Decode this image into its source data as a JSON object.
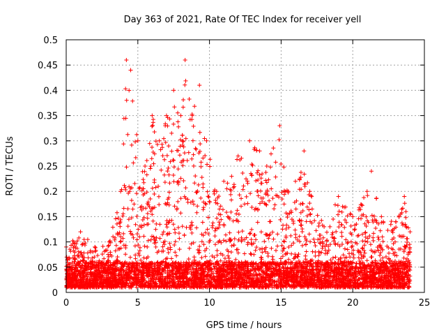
{
  "chart_data": {
    "type": "scatter",
    "title": "Day 363 of 2021, Rate Of TEC Index for receiver yell",
    "xlabel": "GPS time / hours",
    "ylabel": "ROTI / TECUs",
    "xlim": [
      0,
      25
    ],
    "ylim": [
      0,
      0.5
    ],
    "xticks": [
      "0",
      "5",
      "10",
      "15",
      "20",
      "25"
    ],
    "yticks": [
      "0",
      "0.05",
      "0.1",
      "0.15",
      "0.2",
      "0.25",
      "0.3",
      "0.35",
      "0.4",
      "0.45",
      "0.5"
    ],
    "grid": true,
    "marker": "plus",
    "color": "#ff0000",
    "x_range_of_data": [
      0,
      24
    ],
    "envelope": [
      {
        "x": 0.0,
        "y": 0.09
      },
      {
        "x": 1.0,
        "y": 0.12
      },
      {
        "x": 2.0,
        "y": 0.09
      },
      {
        "x": 3.0,
        "y": 0.1
      },
      {
        "x": 3.8,
        "y": 0.2
      },
      {
        "x": 4.2,
        "y": 0.46
      },
      {
        "x": 4.5,
        "y": 0.44
      },
      {
        "x": 5.0,
        "y": 0.3
      },
      {
        "x": 5.5,
        "y": 0.25
      },
      {
        "x": 6.0,
        "y": 0.35
      },
      {
        "x": 6.5,
        "y": 0.3
      },
      {
        "x": 7.0,
        "y": 0.35
      },
      {
        "x": 7.5,
        "y": 0.4
      },
      {
        "x": 8.0,
        "y": 0.35
      },
      {
        "x": 8.3,
        "y": 0.46
      },
      {
        "x": 8.8,
        "y": 0.35
      },
      {
        "x": 9.3,
        "y": 0.41
      },
      {
        "x": 9.8,
        "y": 0.3
      },
      {
        "x": 10.5,
        "y": 0.2
      },
      {
        "x": 11.0,
        "y": 0.22
      },
      {
        "x": 12.0,
        "y": 0.27
      },
      {
        "x": 12.8,
        "y": 0.3
      },
      {
        "x": 13.5,
        "y": 0.28
      },
      {
        "x": 14.0,
        "y": 0.25
      },
      {
        "x": 14.9,
        "y": 0.33
      },
      {
        "x": 15.5,
        "y": 0.2
      },
      {
        "x": 16.0,
        "y": 0.22
      },
      {
        "x": 16.6,
        "y": 0.28
      },
      {
        "x": 17.0,
        "y": 0.2
      },
      {
        "x": 18.0,
        "y": 0.13
      },
      {
        "x": 19.0,
        "y": 0.19
      },
      {
        "x": 20.0,
        "y": 0.15
      },
      {
        "x": 21.0,
        "y": 0.2
      },
      {
        "x": 21.3,
        "y": 0.24
      },
      {
        "x": 22.0,
        "y": 0.15
      },
      {
        "x": 23.0,
        "y": 0.14
      },
      {
        "x": 23.6,
        "y": 0.19
      },
      {
        "x": 24.0,
        "y": 0.12
      }
    ],
    "baseline_range": [
      0.01,
      0.06
    ]
  }
}
